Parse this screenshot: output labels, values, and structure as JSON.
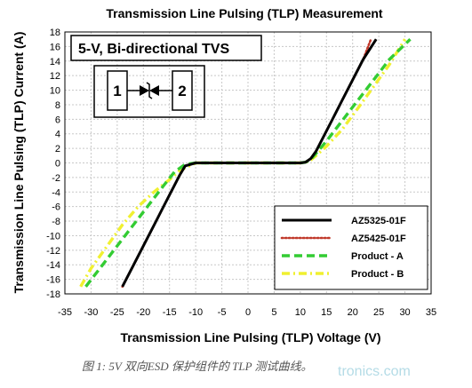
{
  "chart_data": {
    "type": "line",
    "title": "Transmission Line Pulsing (TLP) Measurement",
    "xlabel": "Transmission Line Pulsing (TLP) Voltage (V)",
    "ylabel": "Transmission Line Pulsing (TLP) Current (A)",
    "annotation": "5-V, Bi-directional TVS",
    "device_pins": [
      "1",
      "2"
    ],
    "xlim": [
      -35,
      35
    ],
    "ylim": [
      -18,
      18
    ],
    "xticks": [
      -35,
      -30,
      -25,
      -20,
      -15,
      -10,
      -5,
      0,
      5,
      10,
      15,
      20,
      25,
      30,
      35
    ],
    "yticks": [
      -18,
      -16,
      -14,
      -12,
      -10,
      -8,
      -6,
      -4,
      -2,
      0,
      2,
      4,
      6,
      8,
      10,
      12,
      14,
      16,
      18
    ],
    "grid": true,
    "legend_position": "bottom-right",
    "series": [
      {
        "name": "AZ5325-01F",
        "color": "#000000",
        "style": "solid",
        "x": [
          -24,
          -22,
          -20,
          -18,
          -16,
          -14,
          -13,
          -12,
          -10,
          0,
          10,
          11,
          12,
          13,
          14,
          16,
          18,
          20,
          22,
          24.5
        ],
        "y": [
          -17,
          -14.2,
          -11.4,
          -8.6,
          -5.8,
          -3,
          -1.6,
          -0.4,
          0,
          0,
          0,
          0.1,
          0.6,
          1.6,
          3,
          5.8,
          8.6,
          11.4,
          14.2,
          17
        ]
      },
      {
        "name": "AZ5425-01F",
        "color": "#c0392b",
        "style": "dotted",
        "x": [
          -24,
          -22,
          -20,
          -18,
          -16,
          -14,
          -13,
          -12,
          -10,
          0,
          10,
          11,
          12,
          13,
          14,
          16,
          18,
          20,
          22,
          23.5
        ],
        "y": [
          -17,
          -14.2,
          -11.4,
          -8.6,
          -5.8,
          -3,
          -1.6,
          -0.4,
          0,
          0,
          0,
          0.1,
          0.6,
          1.6,
          3,
          5.8,
          8.6,
          11.4,
          14.2,
          17
        ]
      },
      {
        "name": "Product - A",
        "color": "#33cc33",
        "style": "dashed",
        "x": [
          -31,
          -28,
          -25,
          -22,
          -19,
          -16,
          -14,
          -12,
          -10,
          0,
          10,
          11,
          12,
          13,
          15,
          18,
          21,
          24,
          27,
          31
        ],
        "y": [
          -17,
          -14.2,
          -11.4,
          -8.6,
          -5.8,
          -3,
          -1.2,
          -0.2,
          0,
          0,
          0,
          0.1,
          0.5,
          1.3,
          3,
          5.8,
          8.6,
          11.4,
          14.2,
          17
        ]
      },
      {
        "name": "Product - B",
        "color": "#f0f030",
        "style": "dash-dot",
        "x": [
          -32,
          -30,
          -27,
          -24,
          -21,
          -18,
          -15,
          -13,
          -10,
          0,
          10,
          11,
          12,
          13,
          15,
          18,
          21,
          24,
          27,
          30
        ],
        "y": [
          -17,
          -14.5,
          -11.5,
          -8.5,
          -6,
          -4,
          -2.3,
          -1,
          0,
          0,
          0,
          0.1,
          0.4,
          1,
          2.3,
          4.6,
          7.5,
          10.5,
          13.5,
          17
        ]
      }
    ]
  },
  "caption": "图 1: 5V 双向ESD 保护组件的 TLP 测试曲线。",
  "watermark": "tronics.com"
}
